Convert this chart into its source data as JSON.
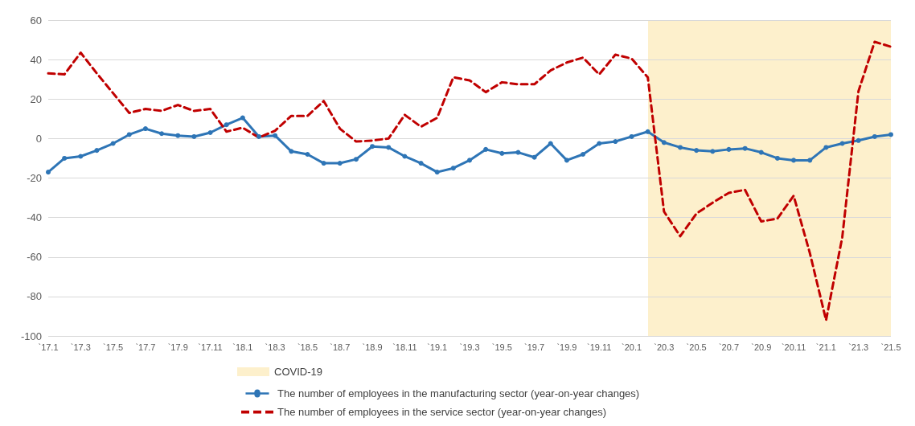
{
  "chart_data": {
    "type": "line",
    "categories": [
      "`17.1",
      null,
      "`17.3",
      null,
      "`17.5",
      null,
      "`17.7",
      null,
      "`17.9",
      null,
      "`17.11",
      null,
      "`18.1",
      null,
      "`18.3",
      null,
      "`18.5",
      null,
      "`18.7",
      null,
      "`18.9",
      null,
      "`18.11",
      null,
      "`19.1",
      null,
      "`19.3",
      null,
      "`19.5",
      null,
      "`19.7",
      null,
      "`19.9",
      null,
      "`19.11",
      null,
      "`20.1",
      null,
      "`20.3",
      null,
      "`20.5",
      null,
      "`20.7",
      null,
      "`20.9",
      null,
      "`20.11",
      null,
      "`21.1",
      null,
      "`21.3",
      null,
      "`21.5"
    ],
    "series": [
      {
        "name": "The number of employees in the manufacturing sector (year-on-year changes)",
        "color": "#2e75b6",
        "marker": "circle",
        "line_style": "solid",
        "values": [
          -17,
          -10,
          -9,
          -6,
          -2.5,
          2,
          5,
          2.5,
          1.5,
          1,
          3,
          7,
          10.5,
          1,
          1.5,
          -6.5,
          -8,
          -12.5,
          -12.5,
          -10.5,
          -4,
          -4.5,
          -9,
          -12.5,
          -17,
          -15,
          -11,
          -5.5,
          -7.5,
          -7,
          -9.5,
          -2.5,
          -11,
          -8,
          -2.5,
          -1.5,
          1,
          3.5,
          -2,
          -4.5,
          -6,
          -6.5,
          -5.5,
          -5,
          -7,
          -10,
          -11,
          -11,
          -4.5,
          -2.5,
          -1,
          1,
          2
        ]
      },
      {
        "name": "The number of employees in the service sector (year-on-year changes)",
        "color": "#c00000",
        "marker": "none",
        "line_style": "dashed",
        "values": [
          33,
          32.5,
          43.5,
          33,
          23,
          13,
          15,
          14,
          17,
          14,
          15,
          3.5,
          5.5,
          0.5,
          4,
          11.5,
          11.5,
          19,
          5,
          -1.5,
          -1,
          0,
          12,
          6,
          10.5,
          31,
          29.5,
          23.5,
          28.5,
          27.5,
          27.5,
          34.5,
          38.5,
          41,
          32.5,
          42.5,
          40.5,
          31,
          -37,
          -49.5,
          -38,
          -32.5,
          -27.5,
          -26,
          -42,
          -40.5,
          -29,
          -58,
          -92,
          -50,
          24,
          49,
          46.5
        ]
      }
    ],
    "annotations": [
      "COVID-19"
    ],
    "ylim": [
      -100,
      60
    ],
    "yticks": [
      -100,
      -80,
      -60,
      -40,
      -20,
      0,
      20,
      40,
      60
    ],
    "grid": "y",
    "legend": "bottom"
  }
}
